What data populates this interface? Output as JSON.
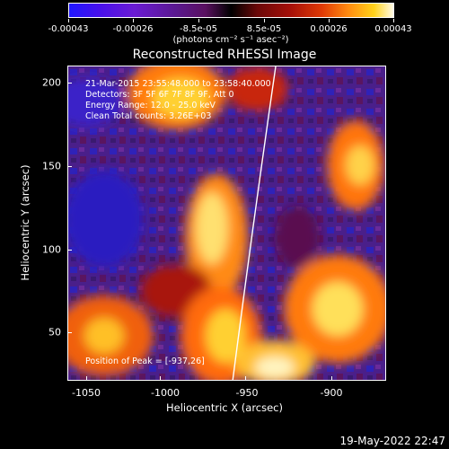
{
  "colorbar": {
    "labels": [
      "-0.00043",
      "-0.00026",
      "-8.5e-05",
      "8.5e-05",
      "0.00026",
      "0.00043"
    ],
    "units": "(photons cm⁻² s⁻¹ asec⁻²)"
  },
  "title": "Reconstructed RHESSI Image",
  "info": {
    "time": "21-Mar-2015 23:55:48.000 to 23:58:40.000",
    "detectors": "Detectors: 3F 5F 6F 7F 8F 9F, Att 0",
    "energy": "Energy Range: 12.0 - 25.0 keV",
    "clean": "Clean     Total counts: 3.26E+03",
    "peak": "Position of Peak = [-937,26]"
  },
  "axes": {
    "xlabel": "Heliocentric X (arcsec)",
    "ylabel": "Heliocentric Y (arcsec)",
    "xticks": [
      "-1050",
      "-1000",
      "-950",
      "-900"
    ],
    "yticks": [
      "200",
      "150",
      "100",
      "50"
    ]
  },
  "datestamp": "19-May-2022 22:47",
  "colors": {
    "background": "#000000",
    "text": "#ffffff",
    "limb": "#ffffff"
  }
}
